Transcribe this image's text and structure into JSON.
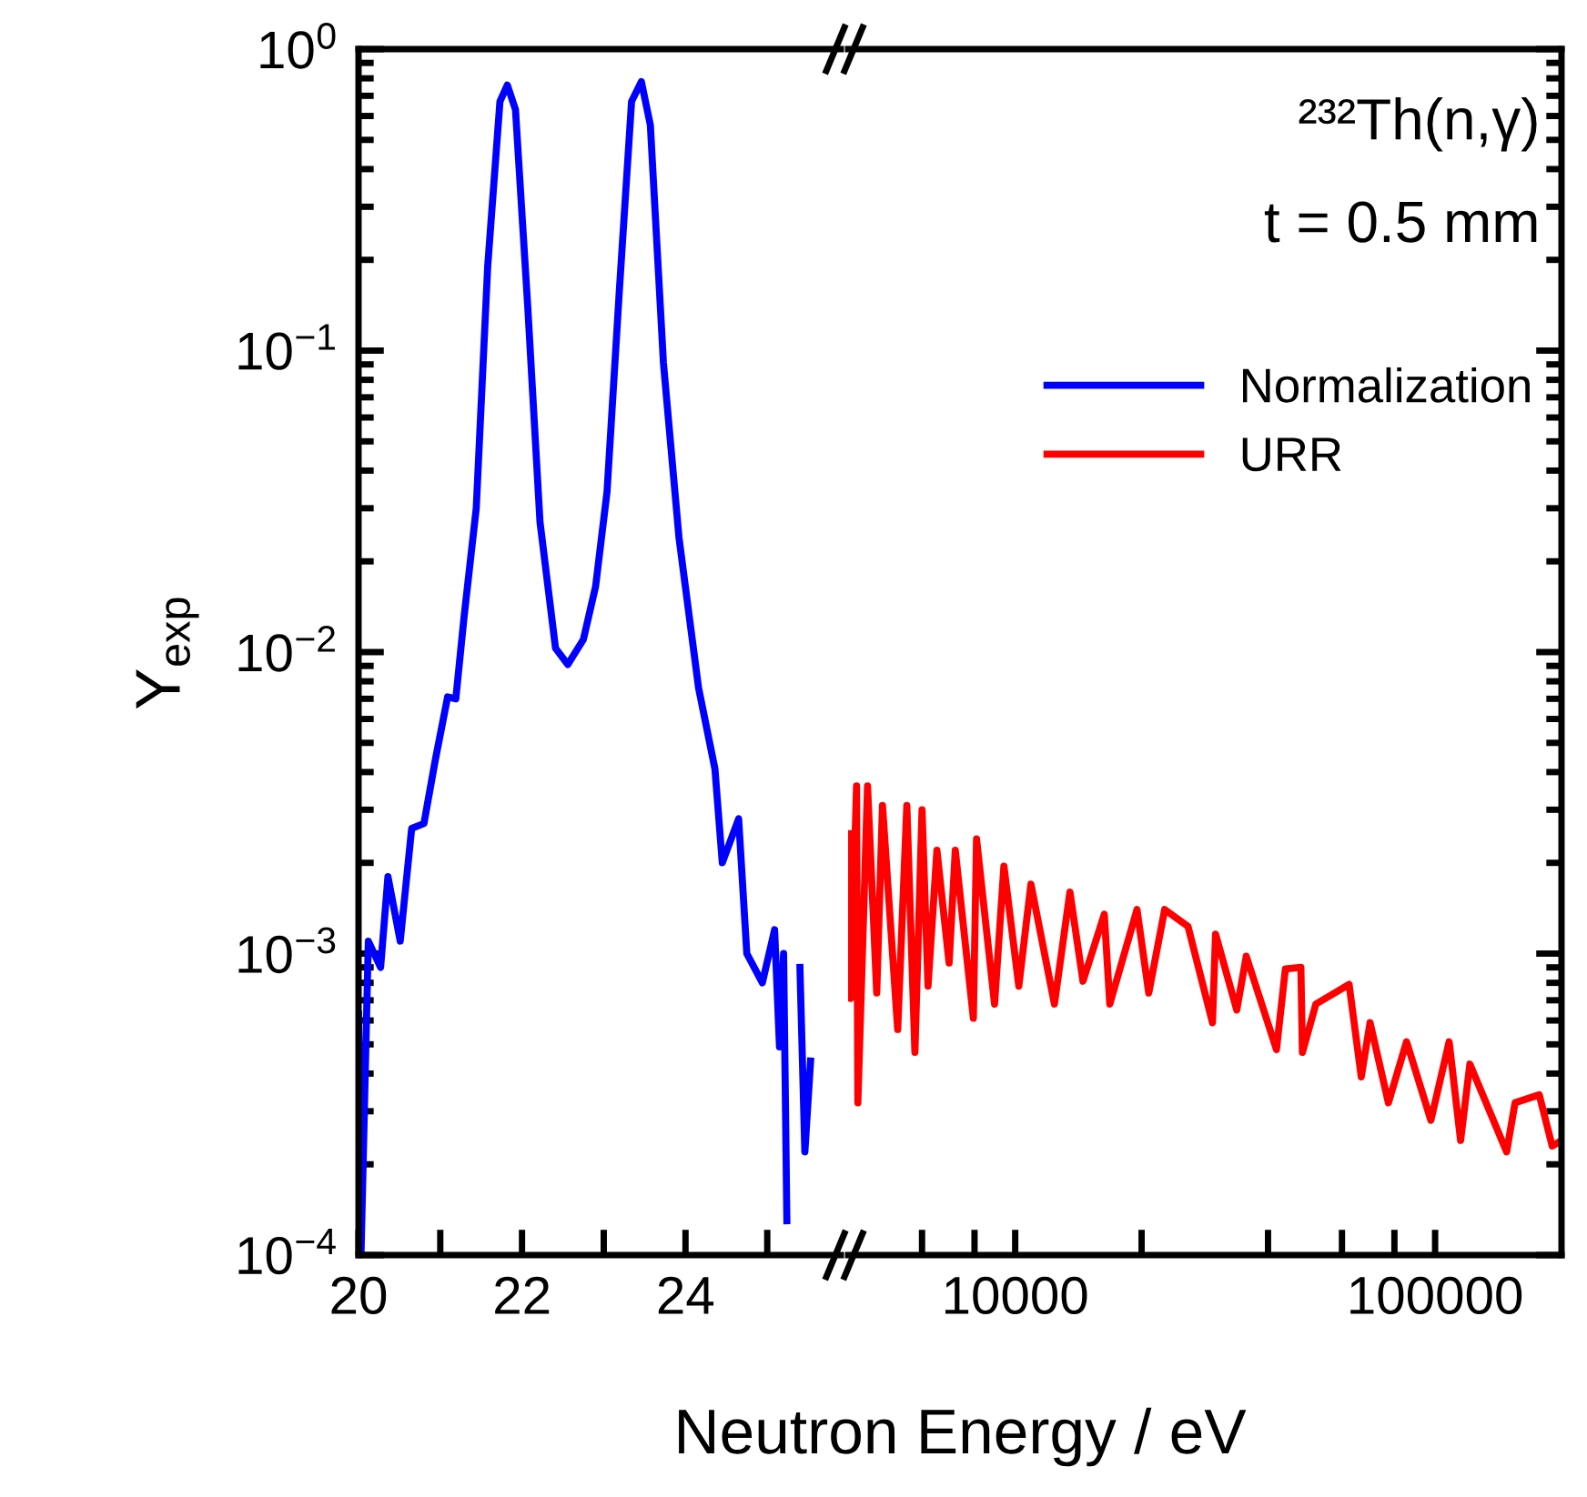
{
  "chart_data": [
    {
      "type": "line",
      "ylabel": "Y$_{exp}$",
      "xlabel": "Neutron Energy / eV",
      "log": "y",
      "xlim": [
        20,
        25.9
      ],
      "xticks": [
        20,
        {
          "value": 21,
          "label": null
        },
        22,
        {
          "value": 23,
          "label": null
        },
        24,
        {
          "value": 25,
          "label": null
        }
      ],
      "ylim": [
        0.0001,
        1
      ],
      "yticks": [
        {
          "value": 0.0001,
          "label": "10$^{−4}$"
        },
        {
          "value": 0.001,
          "label": "10$^{−3}$"
        },
        {
          "value": 0.01,
          "label": "10$^{−2}$"
        },
        {
          "value": 0.1,
          "label": "10$^{−1}$"
        },
        {
          "value": 1,
          "label": "10$^{0}$"
        }
      ],
      "grid": false,
      "legend": "top right",
      "line_style": "solid",
      "marker": "none",
      "series": [
        {
          "name": "Normalization",
          "color": "#0000ff",
          "x": [
            20,
            20.03,
            20.12,
            20.27,
            20.36,
            20.51,
            20.65,
            20.8,
            20.94,
            21.09,
            21.19,
            21.29,
            21.44,
            21.58,
            21.73,
            21.82,
            21.92,
            22.07,
            22.22,
            22.41,
            22.56,
            22.75,
            22.9,
            23.04,
            23.19,
            23.34,
            23.46,
            23.57,
            23.73,
            23.92,
            24.16,
            24.36,
            24.45,
            24.65,
            24.75,
            24.94,
            25.09,
            25.15,
            25.2,
            25.24,
            25.32,
            25.4,
            25.46,
            25.53
          ],
          "values": [
            0.00063,
            0.0001,
            0.0011,
            0.0009,
            0.0018,
            0.0011,
            0.0026,
            0.0027,
            0.0044,
            0.0071,
            0.007,
            0.013,
            0.03,
            0.19,
            0.67,
            0.76,
            0.63,
            0.14,
            0.027,
            0.0103,
            0.0091,
            0.011,
            0.0165,
            0.034,
            0.157,
            0.67,
            0.78,
            0.56,
            0.091,
            0.024,
            0.0076,
            0.0041,
            0.002,
            0.0028,
            0.001,
            0.0008,
            0.0012,
            0.00049,
            0.001,
            0.00013,
            null,
            0.0009,
            0.00022,
            0.00044
          ]
        }
      ]
    },
    {
      "type": "line",
      "log": "xy",
      "tick_labels": "x",
      "xlim": [
        4000,
        200000
      ],
      "xticks": [
        {
          "value": 6000,
          "label": null
        },
        {
          "value": 8000,
          "label": null
        },
        10000,
        {
          "value": 20000,
          "label": null
        },
        {
          "value": 40000,
          "label": null
        },
        {
          "value": 60000,
          "label": null
        },
        {
          "value": 80000,
          "label": null
        },
        100000
      ],
      "ylim": [
        0.0001,
        1
      ],
      "yticks": [
        {
          "value": 0.0001,
          "label": null
        },
        {
          "value": 0.001,
          "label": null
        },
        {
          "value": 0.01,
          "label": null
        },
        {
          "value": 0.1,
          "label": null
        },
        {
          "value": 1,
          "label": null
        }
      ],
      "grid": false,
      "legend": "top right",
      "line_style": "solid",
      "marker": "none",
      "annotations": [
        "²³²Th(n,γ)",
        "t = 0.5 mm"
      ],
      "series": [
        {
          "name": "URR",
          "color": "#ff0000",
          "x": [
            4027,
            4052,
            4190,
            4220,
            4450,
            4680,
            4830,
            5250,
            5520,
            5770,
            6000,
            6200,
            6510,
            6960,
            7200,
            7950,
            8090,
            8930,
            9400,
            10200,
            10900,
            12400,
            13500,
            14500,
            16300,
            16800,
            19500,
            20800,
            22700,
            25800,
            29500,
            30000,
            33700,
            35500,
            41900,
            44000,
            47900,
            48300,
            52000,
            62400,
            66700,
            70000,
            77400,
            85500,
            97700,
            108000,
            115000,
            121000,
            148000,
            155000,
            177000,
            190000,
            200000
          ],
          "values": [
            0.0025,
            0.00071,
            0.0036,
            0.00032,
            0.0036,
            0.00074,
            0.0031,
            0.00056,
            0.0031,
            0.00047,
            0.003,
            0.00078,
            0.0022,
            0.00093,
            0.0022,
            0.00061,
            0.0024,
            0.00068,
            0.00195,
            0.00078,
            0.0017,
            0.00068,
            0.0016,
            0.00081,
            0.00135,
            0.00068,
            0.0014,
            0.00074,
            0.0014,
            0.00123,
            0.00059,
            0.00116,
            0.00065,
            0.00098,
            0.00048,
            0.00089,
            0.0009,
            0.00047,
            0.00068,
            0.00079,
            0.00039,
            0.00059,
            0.00032,
            0.00051,
            0.00028,
            0.00051,
            0.00024,
            0.00043,
            0.00022,
            0.00032,
            0.00034,
            0.00023,
            0.00024
          ]
        }
      ]
    }
  ]
}
